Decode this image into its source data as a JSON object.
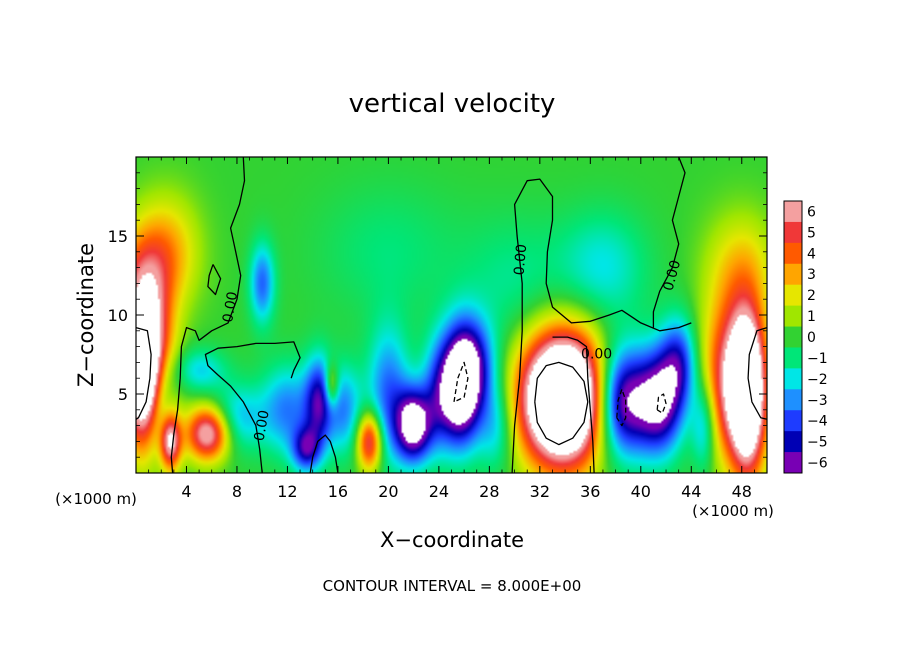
{
  "chart_data": {
    "type": "heatmap",
    "title": "vertical velocity",
    "xlabel": "X−coordinate",
    "ylabel": "Z−coordinate",
    "x_unit_left": "(×1000 m)",
    "x_unit_right": "(×1000 m)",
    "footer": "CONTOUR INTERVAL = 8.000E+00",
    "xlim": [
      0,
      50
    ],
    "ylim": [
      0,
      20
    ],
    "x_ticks": [
      4,
      8,
      12,
      16,
      20,
      24,
      28,
      32,
      36,
      40,
      44,
      48
    ],
    "x_tick_labels": [
      "4",
      "8",
      "12",
      "16",
      "20",
      "24",
      "28",
      "32",
      "36",
      "40",
      "44",
      "48"
    ],
    "y_ticks": [
      5,
      10,
      15
    ],
    "y_tick_labels": [
      "5",
      "10",
      "15"
    ],
    "colorbar": {
      "values": [
        6,
        5,
        4,
        3,
        2,
        1,
        0,
        -1,
        -2,
        -3,
        -4,
        -5,
        -6
      ],
      "labels": [
        "6",
        "5",
        "4",
        "3",
        "2",
        "1",
        "0",
        "−1",
        "−2",
        "−3",
        "−4",
        "−5",
        "−6"
      ],
      "colors": [
        "#f4a0a0",
        "#f03838",
        "#ff5a00",
        "#ffa500",
        "#e6e600",
        "#a0e600",
        "#32d232",
        "#00e678",
        "#00e6e6",
        "#1e90ff",
        "#1e3cff",
        "#0000b4",
        "#7800b4"
      ],
      "saturate_above_color": "#ffffff",
      "saturate_below_color": "#ffffff"
    },
    "contour_labels": [
      {
        "text": "0.00",
        "x": 7.5,
        "y": 10.5,
        "rotation": -80
      },
      {
        "text": "0.00",
        "x": 10.0,
        "y": 3.0,
        "rotation": -80
      },
      {
        "text": "0.00",
        "x": 30.5,
        "y": 13.5,
        "rotation": -85
      },
      {
        "text": "0.00",
        "x": 36.5,
        "y": 7.5,
        "rotation": 0
      },
      {
        "text": "0.00",
        "x": 42.5,
        "y": 12.5,
        "rotation": -75
      }
    ],
    "features": [
      {
        "x": 0.8,
        "z": 6.5,
        "amp": 12,
        "sx": 1.3,
        "sz": 3.2
      },
      {
        "x": 0.5,
        "z": 12.0,
        "amp": 3.2,
        "sx": 1.6,
        "sz": 2.5
      },
      {
        "x": 2.5,
        "z": 14.0,
        "amp": 2.8,
        "sx": 1.8,
        "sz": 2.5
      },
      {
        "x": 2.0,
        "z": 4.5,
        "amp": -4.5,
        "sx": 0.8,
        "sz": 2.5
      },
      {
        "x": 2.7,
        "z": 2.0,
        "amp": 7,
        "sx": 0.6,
        "sz": 1.3
      },
      {
        "x": 5.7,
        "z": 2.5,
        "amp": 7,
        "sx": 1.2,
        "sz": 1.2
      },
      {
        "x": 8.0,
        "z": 3.5,
        "amp": -2.5,
        "sx": 1.5,
        "sz": 1.5
      },
      {
        "x": 5.0,
        "z": 6.5,
        "amp": -2.2,
        "sx": 1.5,
        "sz": 1.0
      },
      {
        "x": 10.0,
        "z": 12.0,
        "amp": -3.5,
        "sx": 0.7,
        "sz": 1.8
      },
      {
        "x": 12.0,
        "z": 4.0,
        "amp": -3.2,
        "sx": 1.5,
        "sz": 2.0
      },
      {
        "x": 13.5,
        "z": 1.5,
        "amp": -4.5,
        "sx": 0.8,
        "sz": 1.0
      },
      {
        "x": 14.5,
        "z": 4.5,
        "amp": -4.8,
        "sx": 0.8,
        "sz": 2.0
      },
      {
        "x": 15.5,
        "z": 5.5,
        "amp": 3.5,
        "sx": 0.4,
        "sz": 1.0
      },
      {
        "x": 16.5,
        "z": 4.0,
        "amp": -3.0,
        "sx": 1.0,
        "sz": 2.0
      },
      {
        "x": 18.5,
        "z": 2.0,
        "amp": 6,
        "sx": 0.7,
        "sz": 1.3
      },
      {
        "x": 20.0,
        "z": 5.0,
        "amp": -3.5,
        "sx": 1.2,
        "sz": 3.0
      },
      {
        "x": 22.0,
        "z": 3.0,
        "amp": -7.5,
        "sx": 1.0,
        "sz": 1.6
      },
      {
        "x": 24.0,
        "z": 5.0,
        "amp": -3.5,
        "sx": 1.0,
        "sz": 2.5
      },
      {
        "x": 25.8,
        "z": 5.5,
        "amp": -9,
        "sx": 1.1,
        "sz": 2.5
      },
      {
        "x": 27.0,
        "z": 7.0,
        "amp": -3.0,
        "sx": 1.2,
        "sz": 2.0
      },
      {
        "x": 28.5,
        "z": 3.0,
        "amp": -2.5,
        "sx": 1.0,
        "sz": 2.0
      },
      {
        "x": 33.8,
        "z": 4.7,
        "amp": 14,
        "sx": 2.3,
        "sz": 2.9
      },
      {
        "x": 38.5,
        "z": 4.5,
        "amp": -7,
        "sx": 1.5,
        "sz": 2.4
      },
      {
        "x": 41.5,
        "z": 4.5,
        "amp": -6.5,
        "sx": 1.3,
        "sz": 2.3
      },
      {
        "x": 43.0,
        "z": 7.0,
        "amp": -4.0,
        "sx": 1.0,
        "sz": 2.0
      },
      {
        "x": 37.0,
        "z": 13.0,
        "amp": -2.0,
        "sx": 2.5,
        "sz": 2.5
      },
      {
        "x": 47.0,
        "z": 6.0,
        "amp": 5.5,
        "sx": 1.5,
        "sz": 3.5
      },
      {
        "x": 48.5,
        "z": 5.0,
        "amp": 10,
        "sx": 1.0,
        "sz": 3.5
      },
      {
        "x": 48.0,
        "z": 13.0,
        "amp": 2.2,
        "sx": 2.0,
        "sz": 2.5
      },
      {
        "x": 45.0,
        "z": 3.0,
        "amp": -3.0,
        "sx": 0.7,
        "sz": 2.0
      },
      {
        "x": 30.0,
        "z": 12.0,
        "amp": -1.2,
        "sx": 3.0,
        "sz": 3.0
      },
      {
        "x": 20.0,
        "z": 14.0,
        "amp": -1.0,
        "sx": 4.0,
        "sz": 3.0
      }
    ],
    "zero_contours": [
      [
        [
          8.5,
          20.0
        ],
        [
          8.6,
          18.5
        ],
        [
          8.2,
          17.0
        ],
        [
          7.5,
          15.5
        ],
        [
          7.9,
          14.0
        ],
        [
          8.3,
          12.5
        ],
        [
          8.0,
          11.0
        ],
        [
          7.3,
          9.5
        ],
        [
          6.0,
          9.0
        ],
        [
          5.0,
          8.4
        ],
        [
          4.7,
          9.0
        ],
        [
          4.0,
          9.2
        ],
        [
          3.6,
          8.0
        ],
        [
          3.5,
          6.0
        ],
        [
          3.3,
          4.0
        ],
        [
          3.0,
          2.5
        ],
        [
          2.8,
          1.0
        ],
        [
          2.9,
          0.0
        ]
      ],
      [
        [
          6.1,
          13.2
        ],
        [
          5.8,
          12.5
        ],
        [
          5.7,
          11.8
        ],
        [
          6.3,
          11.3
        ],
        [
          6.7,
          12.3
        ],
        [
          6.1,
          13.2
        ]
      ],
      [
        [
          10.0,
          0.0
        ],
        [
          9.8,
          1.5
        ],
        [
          9.5,
          3.0
        ],
        [
          8.5,
          4.5
        ],
        [
          7.5,
          5.5
        ],
        [
          6.5,
          6.2
        ],
        [
          5.7,
          6.8
        ],
        [
          5.5,
          7.5
        ],
        [
          6.5,
          7.9
        ],
        [
          8.0,
          8.0
        ],
        [
          9.5,
          8.2
        ],
        [
          11.0,
          8.2
        ],
        [
          12.5,
          8.3
        ],
        [
          13.0,
          7.3
        ],
        [
          12.5,
          6.5
        ],
        [
          12.3,
          6.0
        ]
      ],
      [
        [
          29.8,
          0.0
        ],
        [
          30.0,
          3.0
        ],
        [
          30.4,
          6.0
        ],
        [
          30.6,
          9.0
        ],
        [
          30.6,
          12.0
        ],
        [
          30.2,
          15.0
        ],
        [
          30.0,
          17.0
        ],
        [
          31.0,
          18.5
        ],
        [
          32.0,
          18.6
        ],
        [
          33.0,
          17.5
        ],
        [
          33.0,
          16.0
        ],
        [
          32.6,
          14.0
        ],
        [
          32.5,
          12.0
        ],
        [
          33.0,
          10.5
        ],
        [
          34.5,
          9.5
        ],
        [
          36.0,
          9.6
        ],
        [
          37.5,
          10.0
        ],
        [
          38.5,
          10.3
        ],
        [
          40.0,
          9.5
        ],
        [
          41.5,
          9.0
        ],
        [
          43.0,
          9.2
        ],
        [
          44.0,
          9.5
        ]
      ],
      [
        [
          43.0,
          20.0
        ],
        [
          43.5,
          19.0
        ],
        [
          43.0,
          17.5
        ],
        [
          42.5,
          16.0
        ],
        [
          43.0,
          14.5
        ],
        [
          42.5,
          13.0
        ],
        [
          41.5,
          11.5
        ],
        [
          41.0,
          10.2
        ],
        [
          41.0,
          9.2
        ]
      ],
      [
        [
          36.3,
          0.0
        ],
        [
          36.2,
          2.0
        ],
        [
          36.0,
          4.0
        ],
        [
          35.8,
          6.0
        ],
        [
          35.7,
          8.0
        ],
        [
          35.0,
          8.4
        ],
        [
          34.2,
          8.6
        ],
        [
          33.0,
          8.6
        ]
      ],
      [
        [
          13.8,
          0.0
        ],
        [
          14.0,
          1.0
        ],
        [
          14.4,
          2.0
        ],
        [
          15.0,
          2.4
        ],
        [
          15.4,
          2.0
        ],
        [
          15.8,
          1.0
        ],
        [
          16.0,
          0.0
        ]
      ]
    ],
    "positive_contours": [
      [
        [
          0.0,
          9.2
        ],
        [
          0.9,
          9.0
        ],
        [
          1.2,
          7.5
        ],
        [
          1.1,
          6.0
        ],
        [
          0.8,
          4.5
        ],
        [
          0.2,
          3.5
        ],
        [
          0.0,
          3.4
        ]
      ],
      [
        [
          31.6,
          4.5
        ],
        [
          31.8,
          6.0
        ],
        [
          32.5,
          6.8
        ],
        [
          33.5,
          7.0
        ],
        [
          34.6,
          6.7
        ],
        [
          35.5,
          5.8
        ],
        [
          35.8,
          4.5
        ],
        [
          35.5,
          3.2
        ],
        [
          34.6,
          2.2
        ],
        [
          33.5,
          1.8
        ],
        [
          32.5,
          2.2
        ],
        [
          31.8,
          3.2
        ],
        [
          31.6,
          4.5
        ]
      ],
      [
        [
          50.0,
          9.2
        ],
        [
          49.2,
          9.0
        ],
        [
          48.6,
          7.5
        ],
        [
          48.5,
          6.0
        ],
        [
          48.8,
          4.5
        ],
        [
          49.5,
          3.5
        ],
        [
          50.0,
          3.4
        ]
      ]
    ],
    "negative_contours": [
      [
        [
          25.2,
          4.5
        ],
        [
          25.5,
          6.0
        ],
        [
          26.0,
          7.0
        ],
        [
          26.3,
          6.0
        ],
        [
          26.0,
          4.8
        ],
        [
          25.2,
          4.5
        ]
      ],
      [
        [
          38.1,
          3.5
        ],
        [
          38.2,
          4.6
        ],
        [
          38.5,
          5.3
        ],
        [
          38.8,
          4.6
        ],
        [
          38.8,
          3.5
        ],
        [
          38.5,
          3.0
        ],
        [
          38.1,
          3.5
        ]
      ],
      [
        [
          41.3,
          4.0
        ],
        [
          41.4,
          4.8
        ],
        [
          41.8,
          5.0
        ],
        [
          42.0,
          4.4
        ],
        [
          41.7,
          3.8
        ],
        [
          41.3,
          4.0
        ]
      ]
    ]
  }
}
